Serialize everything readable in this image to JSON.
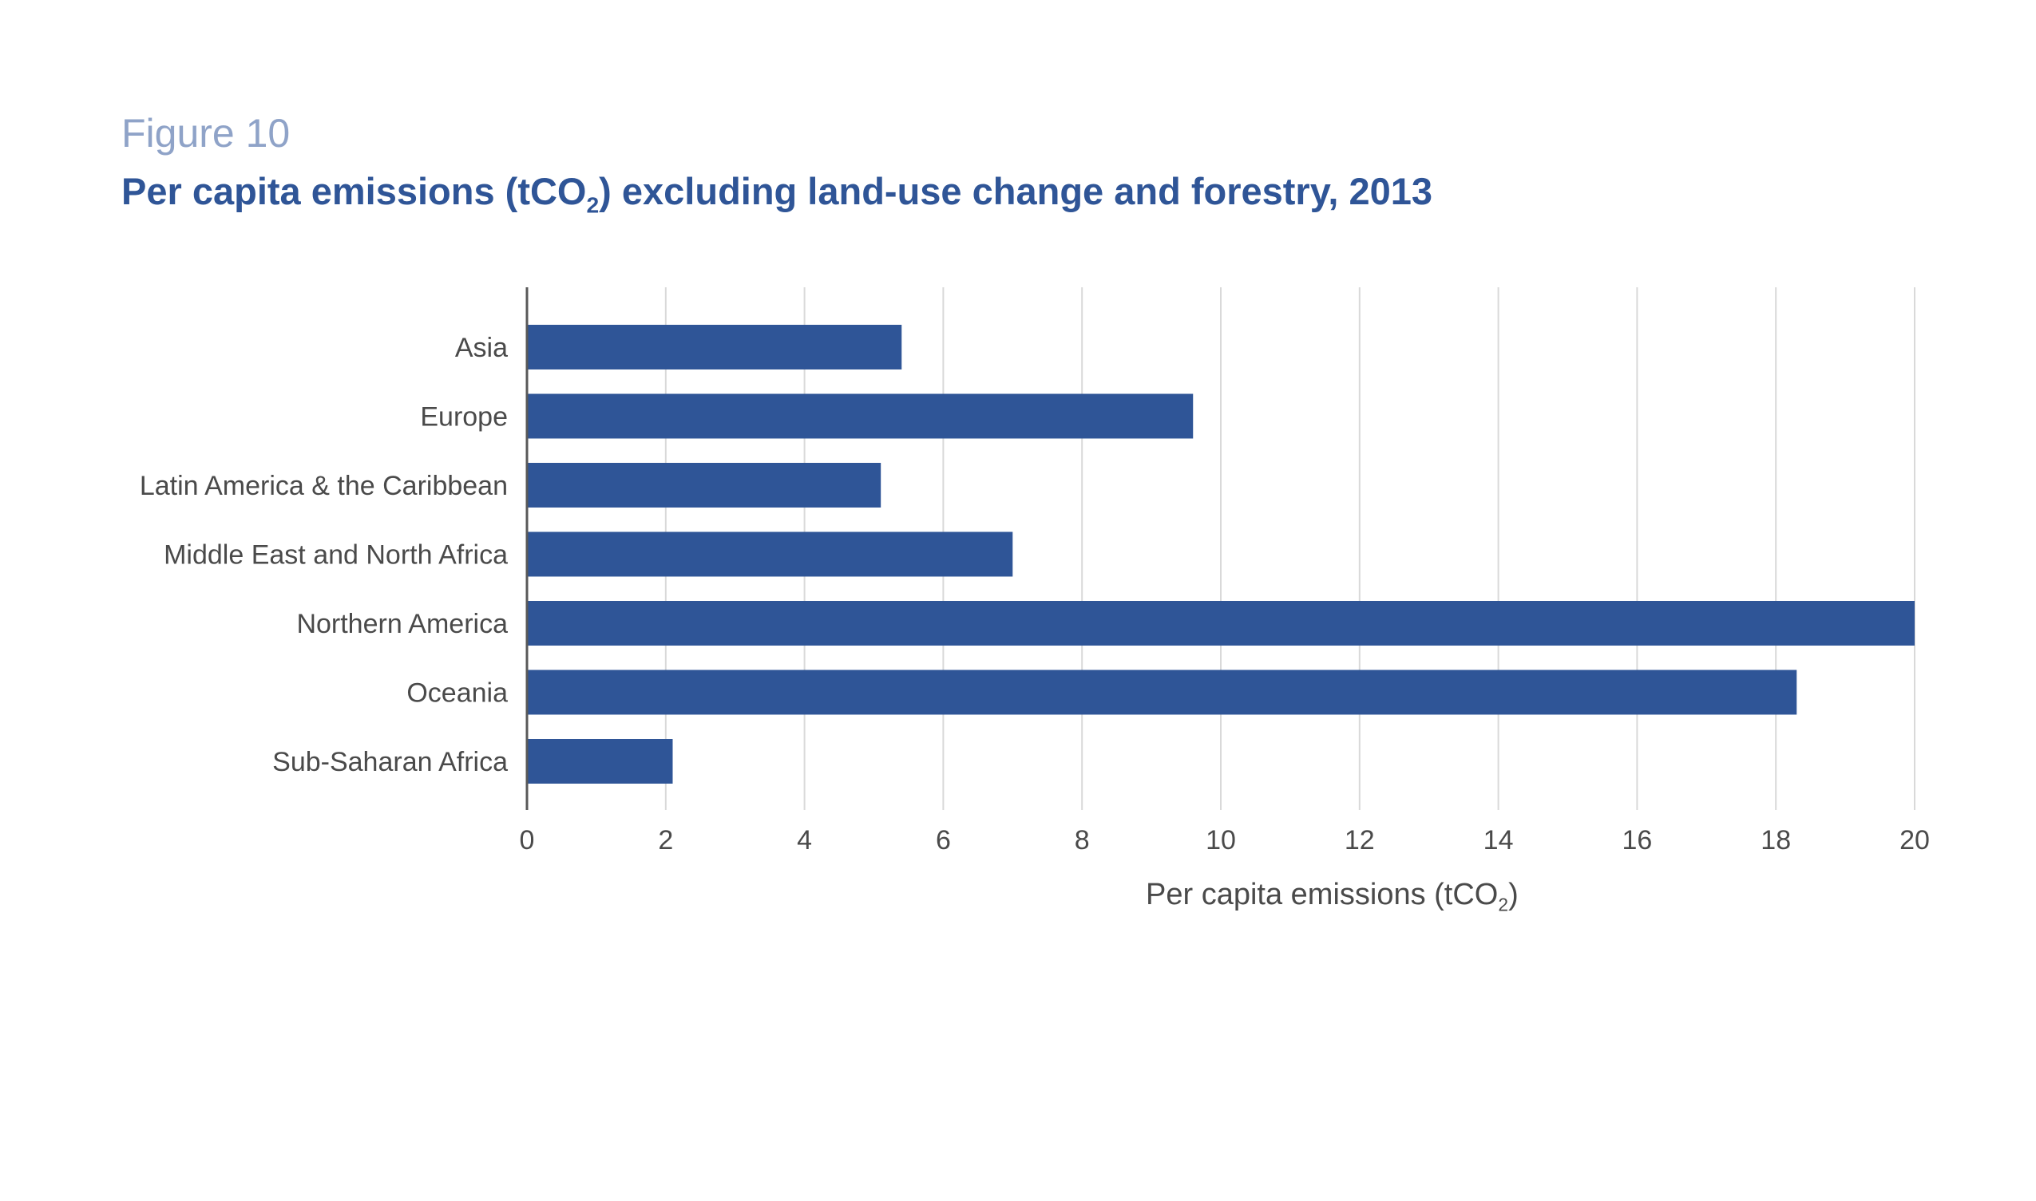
{
  "figure_label": "Figure 10",
  "title": {
    "prefix": "Per capita emissions (tCO",
    "subscript": "2",
    "suffix": ") excluding land-use change and forestry, 2013"
  },
  "chart_data": {
    "type": "bar",
    "orientation": "horizontal",
    "categories": [
      "Asia",
      "Europe",
      "Latin America & the Caribbean",
      "Middle East and North Africa",
      "Northern America",
      "Oceania",
      "Sub-Saharan Africa"
    ],
    "values": [
      5.4,
      9.6,
      5.1,
      7.0,
      20.0,
      18.3,
      2.1
    ],
    "xlim": [
      0,
      20
    ],
    "xticks": [
      "0",
      "2",
      "4",
      "6",
      "8",
      "10",
      "12",
      "14",
      "16",
      "18",
      "20"
    ],
    "xlabel": {
      "prefix": "Per capita emissions (tCO",
      "subscript": "2",
      "suffix": ")"
    },
    "grid": "vertical",
    "bar_color": "#2f5597",
    "grid_color": "#d9d9d9"
  }
}
